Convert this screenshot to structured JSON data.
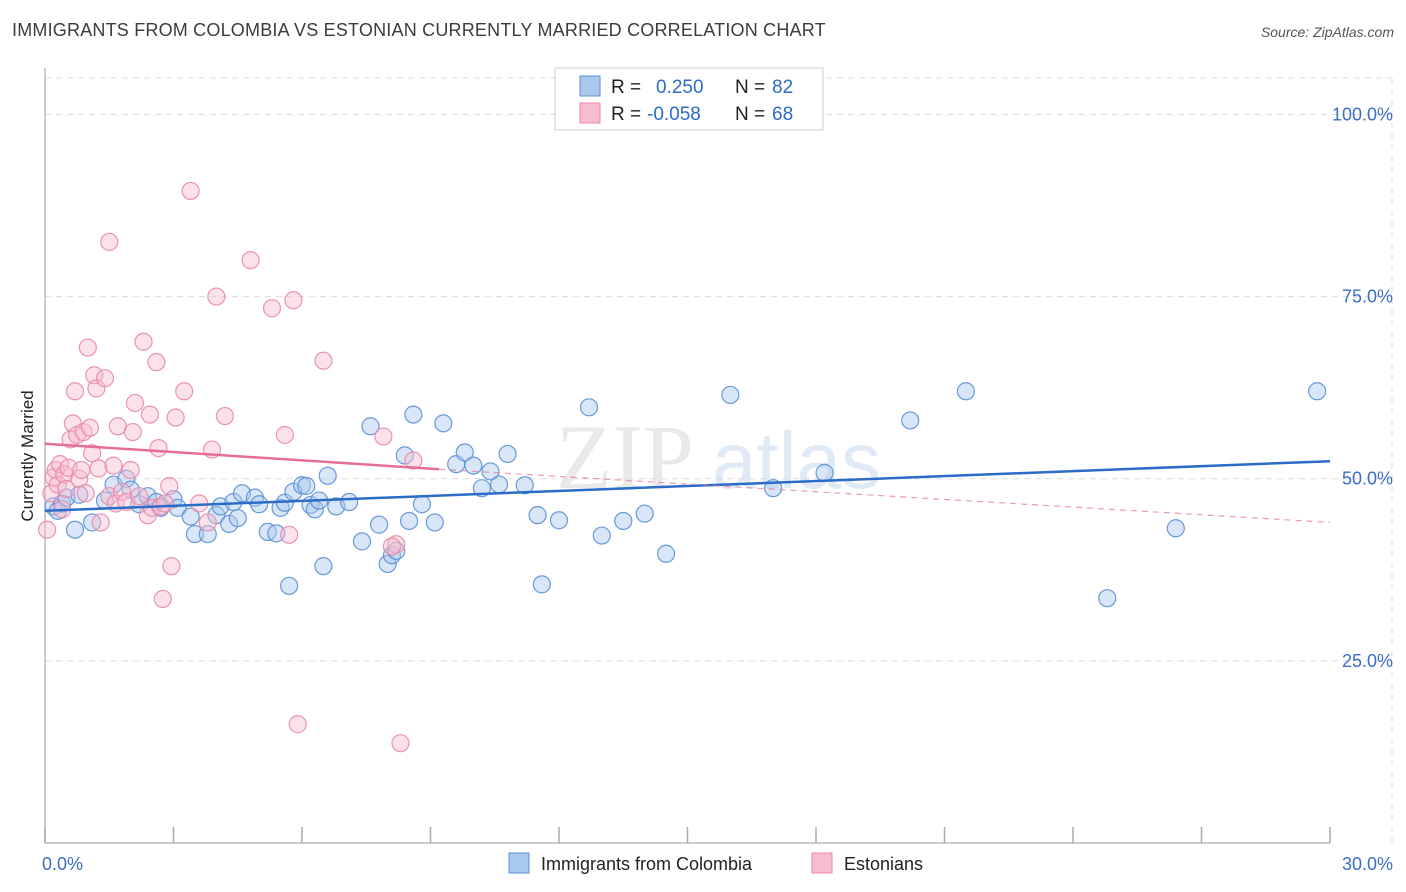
{
  "title": "IMMIGRANTS FROM COLOMBIA VS ESTONIAN CURRENTLY MARRIED CORRELATION CHART",
  "source": "Source: ZipAtlas.com",
  "watermark": {
    "zip": "ZIP",
    "atlas": "atlas"
  },
  "colors": {
    "blue_fill": "#a9c8ee",
    "blue_stroke": "#5b8fd6",
    "blue_line": "#2b6cc9",
    "pink_fill": "#f6bcd0",
    "pink_stroke": "#e889a9",
    "pink_line": "#e46e95",
    "grid": "#dcdcdc",
    "tick_text": "#3a6fc4"
  },
  "legend": {
    "rows": [
      {
        "r_label": "R =",
        "r_value": "0.250",
        "n_label": "N =",
        "n_value": "82"
      },
      {
        "r_label": "R =",
        "r_value": "-0.058",
        "n_label": "N =",
        "n_value": "68"
      }
    ]
  },
  "bottom_legend": [
    "Immigrants from Colombia",
    "Estonians"
  ],
  "chart_data": {
    "type": "scatter",
    "xlabel": "",
    "ylabel": "Currently Married",
    "xlim": [
      0,
      30
    ],
    "ylim": [
      0,
      105
    ],
    "x_tick_labels": [
      {
        "value": 0,
        "label": "0.0%"
      },
      {
        "value": 30,
        "label": "30.0%"
      }
    ],
    "y_tick_labels": [
      {
        "value": 25,
        "label": "25.0%"
      },
      {
        "value": 50,
        "label": "50.0%"
      },
      {
        "value": 75,
        "label": "75.0%"
      },
      {
        "value": 100,
        "label": "100.0%"
      }
    ],
    "grid": true,
    "legend_position": "top-center",
    "series": [
      {
        "name": "Immigrants from Colombia",
        "color": "blue",
        "trend": {
          "x": [
            0,
            30
          ],
          "y": [
            45.6,
            52.4
          ],
          "style": "solid"
        },
        "points": [
          [
            0.2,
            46.2
          ],
          [
            0.3,
            45.6
          ],
          [
            0.4,
            46.6
          ],
          [
            0.5,
            47.4
          ],
          [
            0.7,
            43.0
          ],
          [
            0.8,
            47.8
          ],
          [
            1.1,
            44.0
          ],
          [
            1.4,
            47.0
          ],
          [
            1.6,
            49.2
          ],
          [
            1.9,
            50.0
          ],
          [
            2.0,
            48.5
          ],
          [
            2.2,
            46.5
          ],
          [
            2.4,
            47.6
          ],
          [
            2.6,
            46.8
          ],
          [
            2.7,
            46.0
          ],
          [
            3.0,
            47.2
          ],
          [
            3.1,
            46.0
          ],
          [
            3.4,
            44.8
          ],
          [
            3.5,
            42.4
          ],
          [
            3.8,
            42.4
          ],
          [
            4.0,
            45.0
          ],
          [
            4.1,
            46.2
          ],
          [
            4.3,
            43.8
          ],
          [
            4.5,
            44.6
          ],
          [
            4.4,
            46.8
          ],
          [
            4.6,
            48.0
          ],
          [
            4.9,
            47.4
          ],
          [
            5.0,
            46.5
          ],
          [
            5.2,
            42.7
          ],
          [
            5.4,
            42.5
          ],
          [
            5.5,
            46.0
          ],
          [
            5.6,
            46.7
          ],
          [
            5.8,
            48.2
          ],
          [
            5.7,
            35.3
          ],
          [
            6.0,
            49.1
          ],
          [
            6.1,
            49.0
          ],
          [
            6.2,
            46.4
          ],
          [
            6.3,
            45.8
          ],
          [
            6.4,
            47.0
          ],
          [
            6.5,
            38.0
          ],
          [
            6.6,
            50.4
          ],
          [
            6.8,
            46.2
          ],
          [
            7.1,
            46.8
          ],
          [
            7.4,
            41.4
          ],
          [
            7.6,
            57.2
          ],
          [
            7.8,
            43.7
          ],
          [
            8.0,
            38.3
          ],
          [
            8.1,
            39.5
          ],
          [
            8.2,
            40.1
          ],
          [
            8.4,
            53.2
          ],
          [
            8.6,
            58.8
          ],
          [
            8.8,
            46.5
          ],
          [
            8.5,
            44.2
          ],
          [
            9.1,
            44.0
          ],
          [
            9.3,
            57.6
          ],
          [
            9.6,
            52.0
          ],
          [
            9.8,
            53.6
          ],
          [
            10.0,
            51.8
          ],
          [
            10.2,
            48.7
          ],
          [
            10.4,
            51.0
          ],
          [
            10.6,
            49.2
          ],
          [
            10.8,
            53.4
          ],
          [
            11.2,
            49.1
          ],
          [
            11.5,
            45.0
          ],
          [
            11.6,
            35.5
          ],
          [
            12.0,
            44.3
          ],
          [
            12.7,
            59.8
          ],
          [
            13.0,
            42.2
          ],
          [
            13.5,
            44.2
          ],
          [
            14.0,
            45.2
          ],
          [
            14.5,
            39.7
          ],
          [
            16.0,
            61.5
          ],
          [
            17.0,
            48.7
          ],
          [
            18.2,
            50.8
          ],
          [
            20.2,
            58.0
          ],
          [
            21.5,
            62.0
          ],
          [
            24.8,
            33.6
          ],
          [
            26.4,
            43.2
          ],
          [
            29.7,
            62.0
          ]
        ]
      },
      {
        "name": "Estonians",
        "color": "pink",
        "trend": {
          "x": [
            0,
            9.2,
            30
          ],
          "y": [
            54.8,
            51.3,
            44.0
          ],
          "solid_until": 9.2
        },
        "points": [
          [
            0.05,
            43.0
          ],
          [
            0.15,
            48.0
          ],
          [
            0.2,
            50.2
          ],
          [
            0.25,
            51.2
          ],
          [
            0.3,
            49.2
          ],
          [
            0.35,
            52.0
          ],
          [
            0.4,
            45.8
          ],
          [
            0.45,
            50.6
          ],
          [
            0.5,
            48.6
          ],
          [
            0.55,
            51.5
          ],
          [
            0.6,
            55.4
          ],
          [
            0.65,
            57.6
          ],
          [
            0.7,
            62.0
          ],
          [
            0.75,
            56.0
          ],
          [
            0.8,
            50.0
          ],
          [
            0.85,
            51.2
          ],
          [
            0.9,
            56.4
          ],
          [
            0.95,
            48.0
          ],
          [
            1.0,
            68.0
          ],
          [
            1.05,
            57.0
          ],
          [
            1.1,
            53.5
          ],
          [
            1.15,
            64.2
          ],
          [
            1.2,
            62.4
          ],
          [
            1.25,
            51.4
          ],
          [
            1.3,
            44.0
          ],
          [
            1.4,
            63.8
          ],
          [
            1.5,
            47.6
          ],
          [
            1.5,
            82.5
          ],
          [
            1.6,
            51.8
          ],
          [
            1.65,
            46.6
          ],
          [
            1.7,
            57.2
          ],
          [
            1.8,
            48.2
          ],
          [
            1.9,
            46.8
          ],
          [
            2.0,
            51.2
          ],
          [
            2.05,
            56.4
          ],
          [
            2.1,
            60.4
          ],
          [
            2.2,
            47.6
          ],
          [
            2.3,
            68.8
          ],
          [
            2.4,
            45.0
          ],
          [
            2.45,
            58.8
          ],
          [
            2.5,
            46.0
          ],
          [
            2.6,
            66.0
          ],
          [
            2.65,
            54.2
          ],
          [
            2.7,
            46.2
          ],
          [
            2.75,
            33.5
          ],
          [
            2.8,
            46.6
          ],
          [
            2.9,
            49.0
          ],
          [
            2.95,
            38.0
          ],
          [
            3.05,
            58.4
          ],
          [
            3.25,
            62.0
          ],
          [
            3.4,
            89.5
          ],
          [
            3.6,
            46.6
          ],
          [
            3.8,
            44.0
          ],
          [
            3.9,
            54.0
          ],
          [
            4.0,
            75.0
          ],
          [
            4.2,
            58.6
          ],
          [
            4.8,
            80.0
          ],
          [
            5.3,
            73.4
          ],
          [
            5.6,
            56.0
          ],
          [
            5.7,
            42.3
          ],
          [
            5.8,
            74.5
          ],
          [
            5.9,
            16.3
          ],
          [
            6.5,
            66.2
          ],
          [
            7.9,
            55.8
          ],
          [
            8.2,
            41.0
          ],
          [
            8.1,
            40.7
          ],
          [
            8.3,
            13.7
          ],
          [
            8.6,
            52.5
          ]
        ]
      }
    ]
  }
}
